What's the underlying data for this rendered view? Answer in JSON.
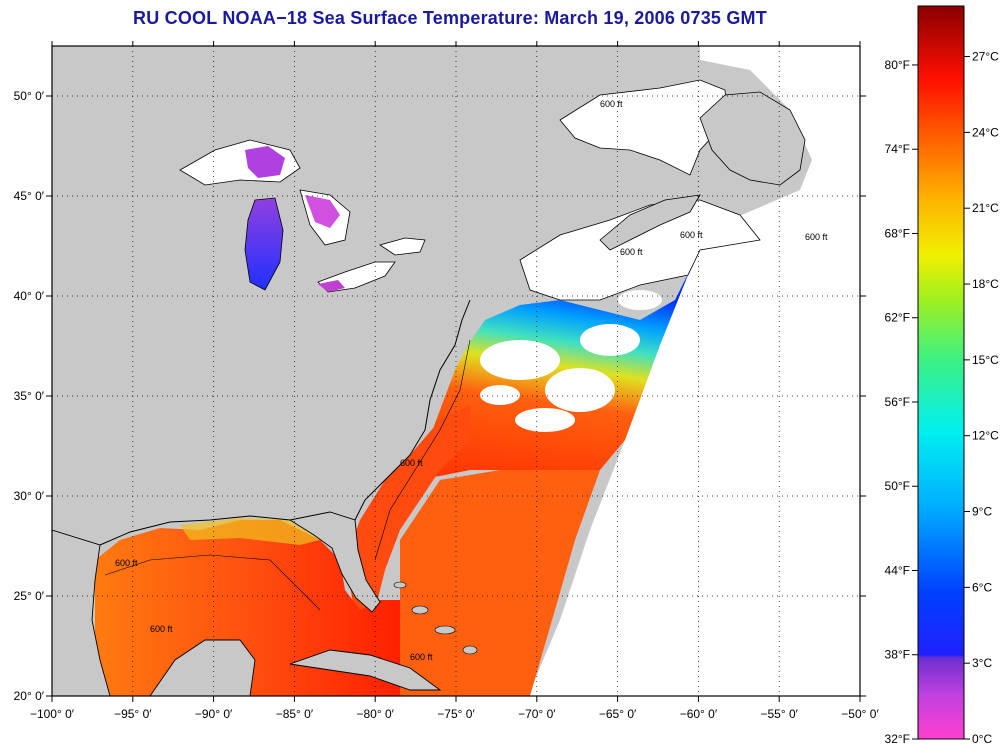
{
  "title": "RU COOL  NOAA−18  Sea Surface Temperature:  March 19, 2006 0735 GMT",
  "map": {
    "lon_range": [
      -100,
      -50
    ],
    "lat_range": [
      20,
      52.5
    ],
    "lon_ticks": [
      {
        "value": -100,
        "label": "−100° 0′"
      },
      {
        "value": -95,
        "label": "−95° 0′"
      },
      {
        "value": -90,
        "label": "−90° 0′"
      },
      {
        "value": -85,
        "label": "−85° 0′"
      },
      {
        "value": -80,
        "label": "−80° 0′"
      },
      {
        "value": -75,
        "label": "−75° 0′"
      },
      {
        "value": -70,
        "label": "−70° 0′"
      },
      {
        "value": -65,
        "label": "−65° 0′"
      },
      {
        "value": -60,
        "label": "−60° 0′"
      },
      {
        "value": -55,
        "label": "−55° 0′"
      },
      {
        "value": -50,
        "label": "−50° 0′"
      }
    ],
    "lat_ticks": [
      {
        "value": 20,
        "label": "20° 0′"
      },
      {
        "value": 25,
        "label": "25° 0′"
      },
      {
        "value": 30,
        "label": "30° 0′"
      },
      {
        "value": 35,
        "label": "35° 0′"
      },
      {
        "value": 40,
        "label": "40° 0′"
      },
      {
        "value": 45,
        "label": "45° 0′"
      },
      {
        "value": 50,
        "label": "50° 0′"
      }
    ],
    "contour_labels": [
      "600 ft",
      "600 ft",
      "600 ft",
      "600 ft",
      "600 ft",
      "600 ft",
      "600 ft",
      "600 ft"
    ],
    "colors": {
      "land": "#c8c8c8",
      "no_data": "#ffffff",
      "title": "#1a1aa0"
    }
  },
  "colorbar": {
    "celsius_range": [
      0,
      29
    ],
    "fahrenheit_labels": [
      "80°F",
      "74°F",
      "68°F",
      "62°F",
      "56°F",
      "50°F",
      "44°F",
      "38°F",
      "32°F"
    ],
    "fahrenheit_values": [
      80,
      74,
      68,
      62,
      56,
      50,
      44,
      38,
      32
    ],
    "celsius_labels": [
      "27°C",
      "24°C",
      "21°C",
      "18°C",
      "15°C",
      "12°C",
      "9°C",
      "6°C",
      "3°C",
      "0°C"
    ],
    "celsius_values": [
      27,
      24,
      21,
      18,
      15,
      12,
      9,
      6,
      3,
      0
    ]
  }
}
